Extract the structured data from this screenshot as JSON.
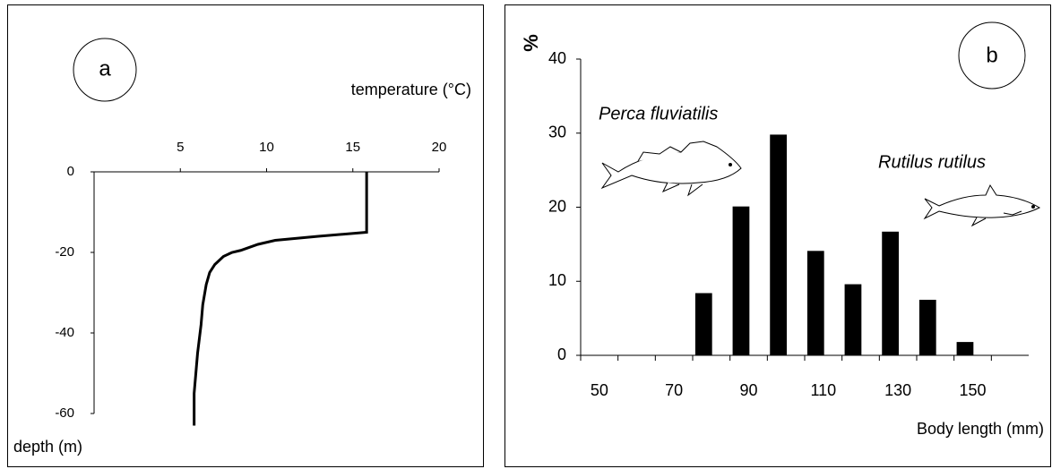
{
  "chart_data": [
    {
      "type": "line",
      "title": "a",
      "x_label": "temperature (°C)",
      "y_label": "depth (m)",
      "x": [
        15.8,
        15.8,
        13,
        10.5,
        9.5,
        8.5,
        8,
        7.5,
        7,
        6.7,
        6.5,
        6.3,
        6.2,
        6,
        5.9,
        5.8,
        5.8
      ],
      "values": [
        0,
        -15,
        -16,
        -17,
        -18,
        -19.5,
        -20,
        -21,
        -23,
        -25,
        -28,
        -33,
        -38,
        -45,
        -50,
        -55,
        -63
      ],
      "color": "#000000",
      "xlim": [
        0,
        20
      ],
      "xticks": [
        5,
        10,
        15,
        20
      ],
      "ylim": [
        -60,
        0
      ],
      "yticks": [
        0,
        -20,
        -40,
        -60
      ]
    },
    {
      "type": "histogram",
      "title": "b",
      "x_label": "Body length (mm)",
      "y_label": "%",
      "annotations": [
        "Perca fluviatilis",
        "Rutilus rutilus"
      ],
      "bins": [
        45,
        55,
        65,
        75,
        85,
        95,
        105,
        115,
        125,
        135,
        145,
        155
      ],
      "values": [
        0,
        0,
        0,
        8.4,
        20.1,
        29.8,
        14.1,
        9.6,
        16.7,
        7.5,
        1.8
      ],
      "color": "#000000",
      "xlim": [
        45,
        165
      ],
      "xticks": [
        50,
        70,
        90,
        110,
        130,
        150
      ],
      "ylim": [
        0,
        40
      ],
      "yticks": [
        0,
        10,
        20,
        30,
        40
      ]
    }
  ]
}
